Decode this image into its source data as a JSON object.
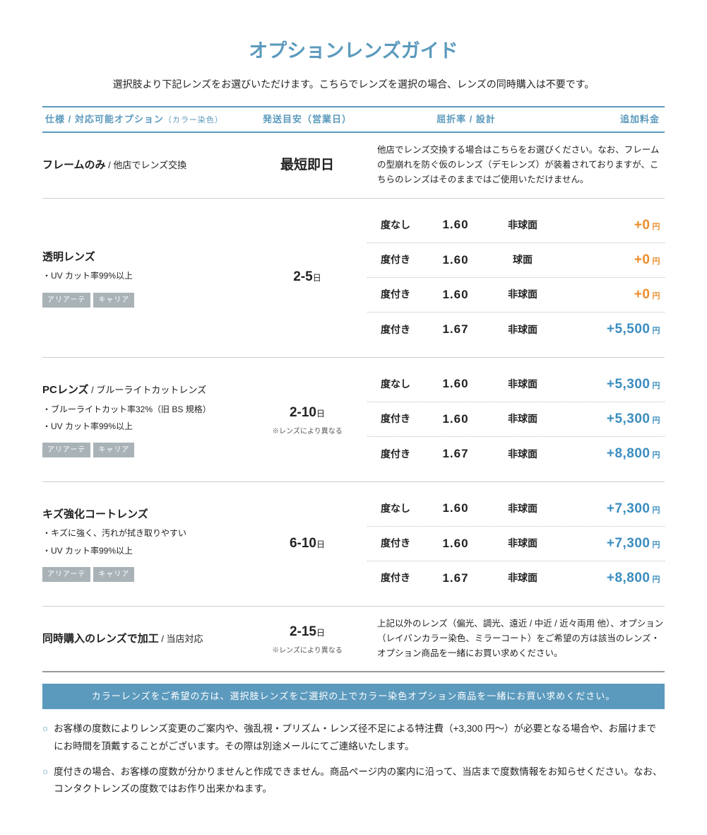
{
  "colors": {
    "primary_blue": "#5b9abd",
    "price_blue": "#3a8dbf",
    "price_orange": "#ea8c2b",
    "badge_bg": "#a9b3b7",
    "text": "#222222",
    "gray_note": "#555555"
  },
  "title": {
    "text": "オプションレンズガイド",
    "fontsize": 27
  },
  "subtitle": "選択肢より下記レンズをお選びいただけます。こちらでレンズを選択の場合、レンズの同時購入は不要です。",
  "header": {
    "spec": "仕様 / 対応可能オプション",
    "spec_note": "（カラー染色）",
    "ship": "発送目安（営業日）",
    "attr": "屈折率 / 設計",
    "price": "追加料金"
  },
  "sections": [
    {
      "type": "info",
      "title": "フレームのみ",
      "title_sub": " / 他店でレンズ交換",
      "ship": "最短即日",
      "ship_unit": "",
      "desc": "他店でレンズ交換する場合はこちらをお選びください。なお、フレームの型崩れを防ぐ仮のレンズ（デモレンズ）が装着されておりますが、こちらのレンズはそのままではご使用いただけません。"
    },
    {
      "type": "variants",
      "title": "透明レンズ",
      "bullets": [
        "・UV カット率99%以上"
      ],
      "badges": [
        "アリアーテ",
        "キャリア"
      ],
      "ship": "2-5",
      "ship_unit": "日",
      "rows": [
        {
          "d": "度なし",
          "idx": "1.60",
          "des": "非球面",
          "price": "+0",
          "color": "orange"
        },
        {
          "d": "度付き",
          "idx": "1.60",
          "des": "球面",
          "price": "+0",
          "color": "orange"
        },
        {
          "d": "度付き",
          "idx": "1.60",
          "des": "非球面",
          "price": "+0",
          "color": "orange"
        },
        {
          "d": "度付き",
          "idx": "1.67",
          "des": "非球面",
          "price": "+5,500",
          "color": "blue"
        }
      ]
    },
    {
      "type": "variants",
      "title": "PCレンズ",
      "title_sub": " / ブルーライトカットレンズ",
      "bullets": [
        "・ブルーライトカット率32%（旧 BS 規格）",
        "・UV カット率99%以上"
      ],
      "badges": [
        "アリアーテ",
        "キャリア"
      ],
      "ship": "2-10",
      "ship_unit": "日",
      "ship_note": "※レンズにより異なる",
      "rows": [
        {
          "d": "度なし",
          "idx": "1.60",
          "des": "非球面",
          "price": "+5,300",
          "color": "blue"
        },
        {
          "d": "度付き",
          "idx": "1.60",
          "des": "非球面",
          "price": "+5,300",
          "color": "blue"
        },
        {
          "d": "度付き",
          "idx": "1.67",
          "des": "非球面",
          "price": "+8,800",
          "color": "blue"
        }
      ]
    },
    {
      "type": "variants",
      "title": "キズ強化コートレンズ",
      "bullets": [
        "・キズに強く、汚れが拭き取りやすい",
        "・UV カット率99%以上"
      ],
      "badges": [
        "アリアーテ",
        "キャリア"
      ],
      "ship": "6-10",
      "ship_unit": "日",
      "rows": [
        {
          "d": "度なし",
          "idx": "1.60",
          "des": "非球面",
          "price": "+7,300",
          "color": "blue"
        },
        {
          "d": "度付き",
          "idx": "1.60",
          "des": "非球面",
          "price": "+7,300",
          "color": "blue"
        },
        {
          "d": "度付き",
          "idx": "1.67",
          "des": "非球面",
          "price": "+8,800",
          "color": "blue"
        }
      ]
    },
    {
      "type": "info",
      "title": "同時購入のレンズで加工",
      "title_sub": " / 当店対応",
      "ship": "2-15",
      "ship_unit": "日",
      "ship_note": "※レンズにより異なる",
      "desc": "上記以外のレンズ（偏光、調光、遠近 / 中近 / 近々両用 他）、オプション（レイバンカラー染色、ミラーコート）をご希望の方は該当のレンズ・オプション商品を一緒にお買い求めください。"
    }
  ],
  "info_bar": "カラーレンズをご希望の方は、選択肢レンズをご選択の上でカラー染色オプション商品を一緒にお買い求めください。",
  "notes": [
    "お客様の度数によりレンズ変更のご案内や、強乱視・プリズム・レンズ径不足による特注費（+3,300 円〜）が必要となる場合や、お届けまでにお時間を頂戴することがございます。その際は別途メールにてご連絡いたします。",
    "度付きの場合、お客様の度数が分かりませんと作成できません。商品ページ内の案内に沿って、当店まで度数情報をお知らせください。なお、コンタクトレンズの度数ではお作り出来かねます。"
  ],
  "yen_label": "円"
}
